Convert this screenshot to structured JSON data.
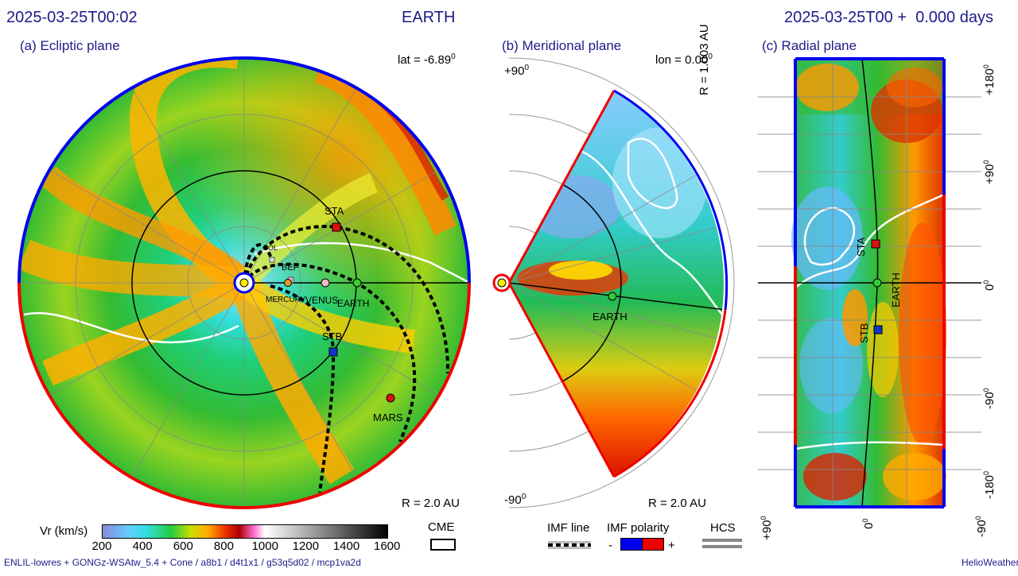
{
  "header": {
    "left_time": "2025-03-25T00:02",
    "center_target": "EARTH",
    "right_time": "2025-03-25T00 +  0.000 days"
  },
  "panels": {
    "ecliptic": {
      "title": "(a) Ecliptic plane",
      "lat_label": "lat = -6.89",
      "lat_sup": "0",
      "r_label": "R = 2.0 AU"
    },
    "meridional": {
      "title": "(b) Meridional plane",
      "lon_label": "lon = 0.00",
      "lon_sup": "0",
      "r_label": "R = 2.0 AU",
      "top_tick": "+90",
      "bottom_tick": "-90",
      "deg": "0"
    },
    "radial": {
      "title": "(c) Radial plane",
      "r_label": "R = 1.003 AU",
      "right_ticks": [
        "+180",
        "+90",
        "0",
        "-90",
        "-180"
      ],
      "bottom_ticks": [
        "+90",
        "0",
        "-90"
      ],
      "deg": "0"
    }
  },
  "bodies": {
    "ecliptic": [
      "SOL",
      "BEP",
      "MERCURY",
      "VENUS",
      "EARTH",
      "STA",
      "STB",
      "MARS"
    ],
    "meridional": [
      "EARTH"
    ],
    "radial": [
      "STA",
      "EARTH",
      "STB"
    ]
  },
  "colorbar": {
    "label": "Vr (km/s)",
    "ticks": [
      "200",
      "400",
      "600",
      "800",
      "1000",
      "1200",
      "1400",
      "1600"
    ]
  },
  "legend": {
    "cme": "CME",
    "imf_line": "IMF line",
    "imf_polarity": "IMF polarity",
    "minus": "-",
    "plus": "+",
    "hcs": "HCS"
  },
  "footer": {
    "model": "ENLIL-lowres + GONGz-WSAtw_5.4 + Cone / a8b1 / d4t1x1 / g53q5d02 / mcp1va2d",
    "brand": "HelioWeather"
  },
  "colors": {
    "header_text": "#1c1c8a",
    "polarity_negative": "#0000ee",
    "polarity_positive": "#ee0000",
    "earth": "#33cc33",
    "sta": "#dd1111",
    "stb": "#1133cc",
    "mars": "#dd1111",
    "sun": "#ffee00"
  },
  "chart_data": {
    "type": "heatmap",
    "quantity": "Vr (km/s)",
    "colorbar_range": [
      200,
      1600
    ],
    "ecliptic_radius_au": 2.0,
    "radial_plane_distance_au": 1.003,
    "earth_latitude_deg": -6.89,
    "meridional_longitude_deg": 0.0,
    "meridional_latitude_range_deg": [
      -90,
      90
    ],
    "radial_longitude_ticks_deg": [
      180,
      90,
      0,
      -90,
      -180
    ],
    "radial_latitude_ticks_deg": [
      90,
      0,
      -90
    ],
    "elapsed_days": 0.0
  }
}
